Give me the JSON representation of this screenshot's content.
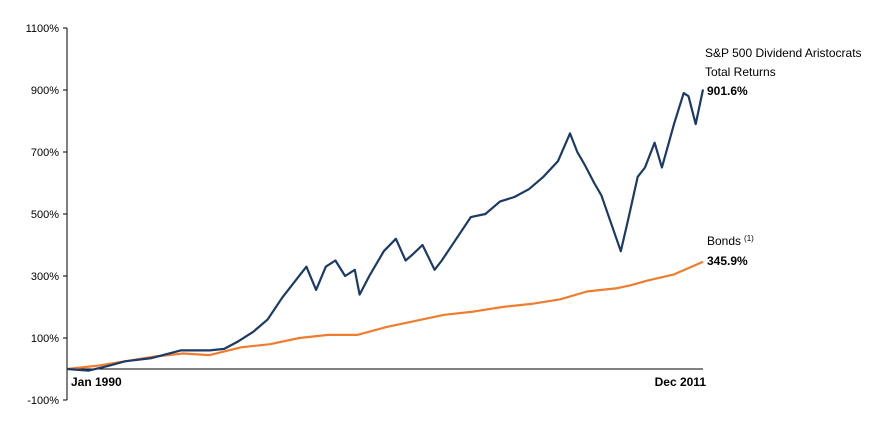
{
  "chart_data": {
    "type": "line",
    "title": "",
    "xlabel": "",
    "ylabel": "",
    "x_range": [
      "1990-01",
      "2011-12"
    ],
    "x_ticks": [
      "Jan 1990",
      "Dec 2011"
    ],
    "ylim": [
      -100,
      1100
    ],
    "y_ticks": [
      "-100%",
      "100%",
      "300%",
      "500%",
      "700%",
      "900%",
      "1100%"
    ],
    "grid": false,
    "legend": "none",
    "colors": {
      "aristocrats": "#1b3a66",
      "bonds": "#ef7d2d"
    },
    "series": [
      {
        "name": "S&P 500 Dividend Aristocrats Total Returns",
        "end_label": "901.6%",
        "points": [
          [
            "1990-01",
            0
          ],
          [
            "1990-10",
            -5
          ],
          [
            "1991-06",
            10
          ],
          [
            "1992-01",
            25
          ],
          [
            "1992-12",
            35
          ],
          [
            "1993-12",
            60
          ],
          [
            "1994-12",
            60
          ],
          [
            "1995-06",
            65
          ],
          [
            "1995-12",
            90
          ],
          [
            "1996-06",
            120
          ],
          [
            "1996-12",
            160
          ],
          [
            "1997-06",
            230
          ],
          [
            "1997-12",
            290
          ],
          [
            "1998-04",
            330
          ],
          [
            "1998-08",
            255
          ],
          [
            "1998-12",
            330
          ],
          [
            "1999-04",
            350
          ],
          [
            "1999-08",
            300
          ],
          [
            "1999-12",
            320
          ],
          [
            "2000-02",
            240
          ],
          [
            "2000-06",
            300
          ],
          [
            "2000-12",
            380
          ],
          [
            "2001-05",
            420
          ],
          [
            "2001-09",
            350
          ],
          [
            "2001-12",
            370
          ],
          [
            "2002-04",
            400
          ],
          [
            "2002-09",
            320
          ],
          [
            "2002-12",
            350
          ],
          [
            "2003-06",
            420
          ],
          [
            "2003-12",
            490
          ],
          [
            "2004-06",
            500
          ],
          [
            "2004-12",
            540
          ],
          [
            "2005-06",
            555
          ],
          [
            "2005-12",
            580
          ],
          [
            "2006-06",
            620
          ],
          [
            "2006-12",
            670
          ],
          [
            "2007-05",
            760
          ],
          [
            "2007-08",
            700
          ],
          [
            "2007-11",
            660
          ],
          [
            "2008-03",
            600
          ],
          [
            "2008-06",
            560
          ],
          [
            "2008-10",
            470
          ],
          [
            "2009-02",
            380
          ],
          [
            "2009-05",
            480
          ],
          [
            "2009-09",
            620
          ],
          [
            "2009-12",
            650
          ],
          [
            "2010-04",
            730
          ],
          [
            "2010-07",
            650
          ],
          [
            "2010-12",
            790
          ],
          [
            "2011-04",
            890
          ],
          [
            "2011-06",
            880
          ],
          [
            "2011-09",
            790
          ],
          [
            "2011-12",
            901.6
          ]
        ]
      },
      {
        "name": "Bonds",
        "footnote": "(1)",
        "end_label": "345.9%",
        "points": [
          [
            "1990-01",
            0
          ],
          [
            "1991-01",
            10
          ],
          [
            "1992-01",
            25
          ],
          [
            "1993-01",
            40
          ],
          [
            "1994-01",
            50
          ],
          [
            "1994-12",
            45
          ],
          [
            "1996-01",
            70
          ],
          [
            "1997-01",
            80
          ],
          [
            "1998-01",
            100
          ],
          [
            "1999-01",
            110
          ],
          [
            "2000-01",
            110
          ],
          [
            "2001-01",
            135
          ],
          [
            "2002-01",
            155
          ],
          [
            "2003-01",
            175
          ],
          [
            "2004-01",
            185
          ],
          [
            "2005-01",
            200
          ],
          [
            "2006-01",
            210
          ],
          [
            "2007-01",
            225
          ],
          [
            "2007-12",
            250
          ],
          [
            "2008-06",
            255
          ],
          [
            "2008-12",
            260
          ],
          [
            "2009-06",
            270
          ],
          [
            "2010-01",
            285
          ],
          [
            "2010-12",
            305
          ],
          [
            "2011-12",
            345.9
          ]
        ]
      }
    ]
  }
}
